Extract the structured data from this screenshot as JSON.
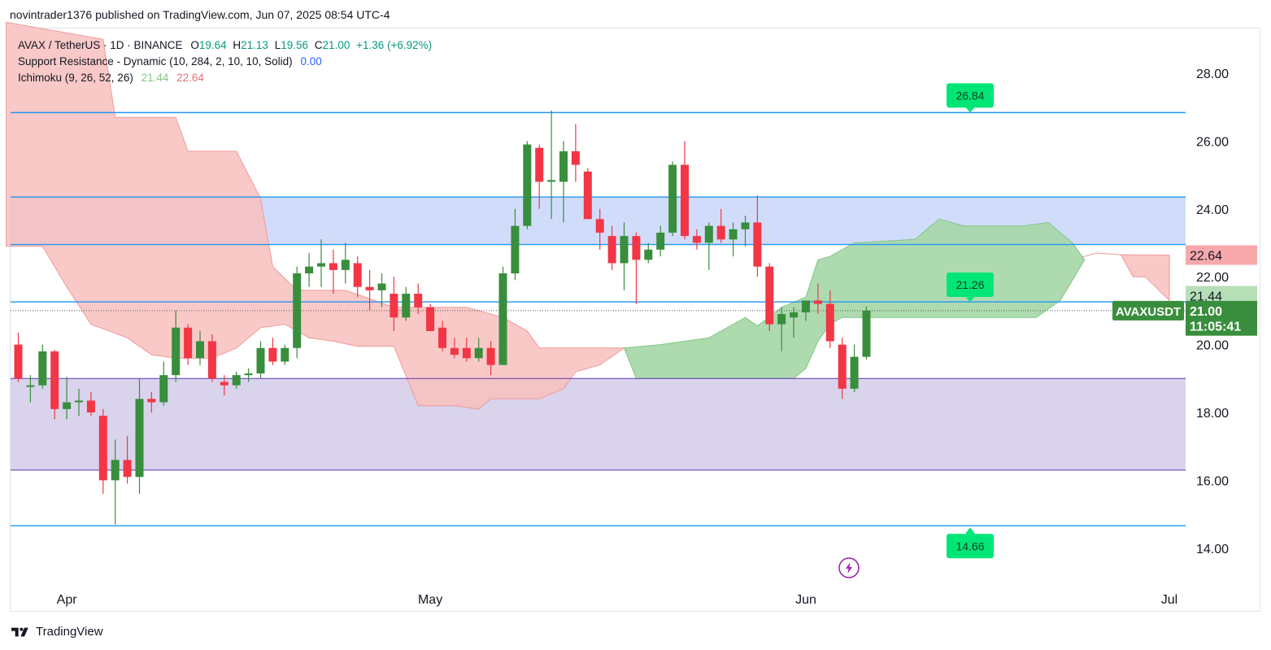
{
  "header": {
    "published": "novintrader1376 published on TradingView.com, Jun 07, 2025 08:54 UTC-4"
  },
  "legend": {
    "symbol": "AVAX / TetherUS · 1D · BINANCE",
    "o_label": "O",
    "o_value": "19.64",
    "h_label": "H",
    "h_value": "21.13",
    "l_label": "L",
    "l_value": "19.56",
    "c_label": "C",
    "c_value": "21.00",
    "change": "+1.36 (+6.92%)",
    "indicator1_name": "Support Resistance - Dynamic (10, 284, 2, 10, 10, Solid)",
    "indicator1_value": "0.00",
    "indicator2_name": "Ichimoku (9, 26, 52, 26)",
    "indicator2_value_a": "21.44",
    "indicator2_value_b": "22.64"
  },
  "footer": {
    "brand": "TradingView"
  },
  "colors": {
    "up": "#388e3c",
    "down": "#f23645",
    "level_line": "#2196f3",
    "zone_blue": "#d1dcfa",
    "zone_purple": "#d9d3ec",
    "cloud_green": "#a5d6a7",
    "cloud_red": "#f8bfbd",
    "callout_green": "#00e676",
    "flash_icon": "#9c27b0"
  },
  "chart_data": {
    "type": "candlestick",
    "symbol": "AVAXUSDT",
    "timeframe": "1D",
    "x_ticks": [
      "Apr",
      "May",
      "Jun",
      "Jul"
    ],
    "y_ticks": [
      "14.00",
      "16.00",
      "18.00",
      "20.00",
      "22.00",
      "24.00",
      "26.00",
      "28.00"
    ],
    "ylim": [
      13.1,
      29.0
    ],
    "price_labels": [
      {
        "text": "22.64",
        "value": 22.64,
        "color": "#f7a8ab",
        "text_color": "#131722"
      },
      {
        "text": "21.44",
        "value": 21.44,
        "color": "#b6dfb8",
        "text_color": "#131722"
      },
      {
        "text": "AVAXUSDT",
        "value": 21.0,
        "color": "#388e3c",
        "text_color": "#ffffff"
      },
      {
        "text": "21.00",
        "value": 21.0,
        "color": "#388e3c",
        "text_color": "#ffffff"
      },
      {
        "text": "11:05:41",
        "value": 20.55,
        "color": "#388e3c",
        "text_color": "#ffffff"
      }
    ],
    "levels": [
      26.84,
      24.35,
      22.95,
      21.26,
      19.0,
      16.3,
      14.66
    ],
    "zones": [
      {
        "from": 22.95,
        "to": 24.35,
        "color": "#d1dcfa"
      },
      {
        "from": 16.3,
        "to": 19.0,
        "color": "#d9d3ec"
      }
    ],
    "callouts": [
      {
        "text": "26.84",
        "value": 26.84,
        "direction": "down"
      },
      {
        "text": "21.26",
        "value": 21.26,
        "direction": "down"
      },
      {
        "text": "14.66",
        "value": 14.66,
        "direction": "up"
      }
    ],
    "candles": [
      {
        "date": "2025-03-28",
        "o": 20.0,
        "h": 20.35,
        "l": 18.9,
        "c": 19.0
      },
      {
        "date": "2025-03-29",
        "o": 18.8,
        "h": 19.1,
        "l": 18.3,
        "c": 18.8
      },
      {
        "date": "2025-03-30",
        "o": 18.8,
        "h": 20.0,
        "l": 18.7,
        "c": 19.8
      },
      {
        "date": "2025-03-31",
        "o": 19.8,
        "h": 19.85,
        "l": 17.8,
        "c": 18.1
      },
      {
        "date": "2025-04-01",
        "o": 18.1,
        "h": 19.05,
        "l": 17.8,
        "c": 18.3
      },
      {
        "date": "2025-04-02",
        "o": 18.3,
        "h": 18.7,
        "l": 17.9,
        "c": 18.35
      },
      {
        "date": "2025-04-03",
        "o": 18.35,
        "h": 18.6,
        "l": 17.9,
        "c": 18.0
      },
      {
        "date": "2025-04-04",
        "o": 17.9,
        "h": 18.1,
        "l": 15.6,
        "c": 16.0
      },
      {
        "date": "2025-04-05",
        "o": 16.0,
        "h": 17.2,
        "l": 14.7,
        "c": 16.6
      },
      {
        "date": "2025-04-06",
        "o": 16.6,
        "h": 17.3,
        "l": 15.9,
        "c": 16.1
      },
      {
        "date": "2025-04-07",
        "o": 16.1,
        "h": 19.0,
        "l": 15.6,
        "c": 18.4
      },
      {
        "date": "2025-04-08",
        "o": 18.4,
        "h": 18.6,
        "l": 18.0,
        "c": 18.3
      },
      {
        "date": "2025-04-09",
        "o": 18.3,
        "h": 19.5,
        "l": 18.2,
        "c": 19.1
      },
      {
        "date": "2025-04-10",
        "o": 19.1,
        "h": 21.0,
        "l": 18.9,
        "c": 20.5
      },
      {
        "date": "2025-04-11",
        "o": 20.5,
        "h": 20.6,
        "l": 19.4,
        "c": 19.6
      },
      {
        "date": "2025-04-12",
        "o": 19.6,
        "h": 20.4,
        "l": 19.4,
        "c": 20.1
      },
      {
        "date": "2025-04-13",
        "o": 20.1,
        "h": 20.3,
        "l": 18.9,
        "c": 19.0
      },
      {
        "date": "2025-04-14",
        "o": 18.9,
        "h": 19.1,
        "l": 18.5,
        "c": 18.8
      },
      {
        "date": "2025-04-15",
        "o": 18.8,
        "h": 19.2,
        "l": 18.7,
        "c": 19.1
      },
      {
        "date": "2025-04-16",
        "o": 19.1,
        "h": 19.3,
        "l": 18.9,
        "c": 19.15
      },
      {
        "date": "2025-04-17",
        "o": 19.15,
        "h": 20.1,
        "l": 19.0,
        "c": 19.9
      },
      {
        "date": "2025-04-18",
        "o": 19.9,
        "h": 20.2,
        "l": 19.4,
        "c": 19.5
      },
      {
        "date": "2025-04-19",
        "o": 19.5,
        "h": 20.0,
        "l": 19.4,
        "c": 19.9
      },
      {
        "date": "2025-04-20",
        "o": 19.9,
        "h": 22.3,
        "l": 19.6,
        "c": 22.1
      },
      {
        "date": "2025-04-21",
        "o": 22.1,
        "h": 22.7,
        "l": 21.7,
        "c": 22.3
      },
      {
        "date": "2025-04-22",
        "o": 22.3,
        "h": 23.1,
        "l": 21.7,
        "c": 22.4
      },
      {
        "date": "2025-04-23",
        "o": 22.4,
        "h": 22.8,
        "l": 21.5,
        "c": 22.2
      },
      {
        "date": "2025-04-24",
        "o": 22.2,
        "h": 23.0,
        "l": 21.8,
        "c": 22.5
      },
      {
        "date": "2025-04-25",
        "o": 22.4,
        "h": 22.6,
        "l": 21.4,
        "c": 21.7
      },
      {
        "date": "2025-04-26",
        "o": 21.7,
        "h": 22.2,
        "l": 21.0,
        "c": 21.6
      },
      {
        "date": "2025-04-27",
        "o": 21.6,
        "h": 22.1,
        "l": 21.1,
        "c": 21.8
      },
      {
        "date": "2025-04-28",
        "o": 21.5,
        "h": 22.0,
        "l": 20.4,
        "c": 20.8
      },
      {
        "date": "2025-04-29",
        "o": 20.8,
        "h": 21.7,
        "l": 20.7,
        "c": 21.5
      },
      {
        "date": "2025-04-30",
        "o": 21.5,
        "h": 21.8,
        "l": 20.9,
        "c": 21.1
      },
      {
        "date": "2025-05-01",
        "o": 21.1,
        "h": 21.2,
        "l": 20.4,
        "c": 20.4
      },
      {
        "date": "2025-05-02",
        "o": 20.5,
        "h": 20.7,
        "l": 19.8,
        "c": 19.9
      },
      {
        "date": "2025-05-03",
        "o": 19.9,
        "h": 20.2,
        "l": 19.6,
        "c": 19.7
      },
      {
        "date": "2025-05-04",
        "o": 19.9,
        "h": 20.2,
        "l": 19.5,
        "c": 19.6
      },
      {
        "date": "2025-05-05",
        "o": 19.6,
        "h": 20.2,
        "l": 19.5,
        "c": 19.9
      },
      {
        "date": "2025-05-06",
        "o": 19.9,
        "h": 20.1,
        "l": 19.1,
        "c": 19.4
      },
      {
        "date": "2025-05-07",
        "o": 19.4,
        "h": 22.3,
        "l": 19.4,
        "c": 22.1
      },
      {
        "date": "2025-05-08",
        "o": 22.1,
        "h": 24.0,
        "l": 21.9,
        "c": 23.5
      },
      {
        "date": "2025-05-09",
        "o": 23.5,
        "h": 26.0,
        "l": 23.4,
        "c": 25.9
      },
      {
        "date": "2025-05-10",
        "o": 25.8,
        "h": 25.9,
        "l": 24.0,
        "c": 24.8
      },
      {
        "date": "2025-05-11",
        "o": 24.8,
        "h": 26.9,
        "l": 23.7,
        "c": 24.85
      },
      {
        "date": "2025-05-12",
        "o": 24.8,
        "h": 26.0,
        "l": 23.6,
        "c": 25.7
      },
      {
        "date": "2025-05-13",
        "o": 25.7,
        "h": 26.5,
        "l": 24.8,
        "c": 25.3
      },
      {
        "date": "2025-05-14",
        "o": 25.1,
        "h": 25.2,
        "l": 23.7,
        "c": 23.7
      },
      {
        "date": "2025-05-15",
        "o": 23.7,
        "h": 24.0,
        "l": 22.8,
        "c": 23.3
      },
      {
        "date": "2025-05-16",
        "o": 23.2,
        "h": 23.5,
        "l": 22.2,
        "c": 22.4
      },
      {
        "date": "2025-05-17",
        "o": 22.4,
        "h": 23.6,
        "l": 21.6,
        "c": 23.2
      },
      {
        "date": "2025-05-18",
        "o": 23.2,
        "h": 23.3,
        "l": 21.2,
        "c": 22.5
      },
      {
        "date": "2025-05-19",
        "o": 22.5,
        "h": 23.0,
        "l": 22.4,
        "c": 22.8
      },
      {
        "date": "2025-05-20",
        "o": 22.8,
        "h": 23.5,
        "l": 22.6,
        "c": 23.3
      },
      {
        "date": "2025-05-21",
        "o": 23.3,
        "h": 25.4,
        "l": 23.2,
        "c": 25.3
      },
      {
        "date": "2025-05-22",
        "o": 25.3,
        "h": 26.0,
        "l": 23.1,
        "c": 23.2
      },
      {
        "date": "2025-05-23",
        "o": 23.2,
        "h": 23.4,
        "l": 22.8,
        "c": 23.0
      },
      {
        "date": "2025-05-24",
        "o": 23.0,
        "h": 23.6,
        "l": 22.2,
        "c": 23.5
      },
      {
        "date": "2025-05-25",
        "o": 23.5,
        "h": 24.0,
        "l": 23.0,
        "c": 23.1
      },
      {
        "date": "2025-05-26",
        "o": 23.1,
        "h": 23.6,
        "l": 22.6,
        "c": 23.4
      },
      {
        "date": "2025-05-27",
        "o": 23.4,
        "h": 23.8,
        "l": 22.9,
        "c": 23.6
      },
      {
        "date": "2025-05-28",
        "o": 23.6,
        "h": 24.4,
        "l": 22.0,
        "c": 22.3
      },
      {
        "date": "2025-05-29",
        "o": 22.3,
        "h": 22.4,
        "l": 20.4,
        "c": 20.6
      },
      {
        "date": "2025-05-30",
        "o": 20.6,
        "h": 21.1,
        "l": 19.8,
        "c": 20.9
      },
      {
        "date": "2025-05-31",
        "o": 20.8,
        "h": 21.1,
        "l": 20.2,
        "c": 20.95
      },
      {
        "date": "2025-06-01",
        "o": 20.95,
        "h": 21.3,
        "l": 20.7,
        "c": 21.3
      },
      {
        "date": "2025-06-02",
        "o": 21.3,
        "h": 21.8,
        "l": 20.9,
        "c": 21.2
      },
      {
        "date": "2025-06-03",
        "o": 21.2,
        "h": 21.6,
        "l": 19.9,
        "c": 20.1
      },
      {
        "date": "2025-06-04",
        "o": 20.0,
        "h": 20.2,
        "l": 18.4,
        "c": 18.7
      },
      {
        "date": "2025-06-05",
        "o": 18.7,
        "h": 20.0,
        "l": 18.6,
        "c": 19.64
      },
      {
        "date": "2025-06-06",
        "o": 19.64,
        "h": 21.13,
        "l": 19.56,
        "c": 21.0
      }
    ]
  }
}
